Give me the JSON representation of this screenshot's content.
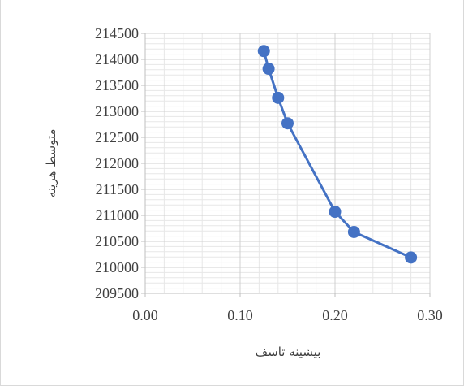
{
  "chart_data": {
    "type": "scatter",
    "xlabel": "بیشینه تاسف",
    "ylabel": "متوسط هزینه",
    "xlim": [
      0.0,
      0.3
    ],
    "ylim": [
      209500,
      214500
    ],
    "x_ticks": [
      "0.00",
      "0.10",
      "0.20",
      "0.30"
    ],
    "y_ticks": [
      "209500",
      "210000",
      "210500",
      "211000",
      "211500",
      "212000",
      "212500",
      "213000",
      "213500",
      "214000",
      "214500"
    ],
    "grid": true,
    "legend": "none",
    "series": [
      {
        "color": "#4472c4",
        "marker": "circle",
        "line": true,
        "points": [
          {
            "x": 0.125,
            "y": 214160
          },
          {
            "x": 0.13,
            "y": 213820
          },
          {
            "x": 0.14,
            "y": 213260
          },
          {
            "x": 0.15,
            "y": 212770
          },
          {
            "x": 0.2,
            "y": 211070
          },
          {
            "x": 0.22,
            "y": 210680
          },
          {
            "x": 0.28,
            "y": 210190
          }
        ]
      }
    ]
  }
}
